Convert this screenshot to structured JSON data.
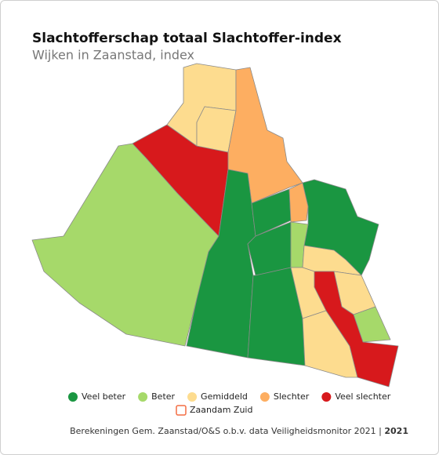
{
  "header": {
    "title": "Slachtofferschap totaal Slachtoffer-index",
    "subtitle": "Wijken in Zaanstad, index"
  },
  "legend": {
    "items": [
      {
        "label": "Veel beter",
        "color": "#1a9641"
      },
      {
        "label": "Beter",
        "color": "#a6d96a"
      },
      {
        "label": "Gemiddeld",
        "color": "#fddc8f"
      },
      {
        "label": "Slechter",
        "color": "#fdae61"
      },
      {
        "label": "Veel slechter",
        "color": "#d7191c"
      }
    ],
    "highlight": {
      "label": "Zaandam Zuid",
      "color": "#f46d43"
    }
  },
  "footer": {
    "source": "Berekeningen Gem. Zaanstad/O&S o.b.v. data Veiligheidsmonitor 2021",
    "year": "2021"
  }
}
